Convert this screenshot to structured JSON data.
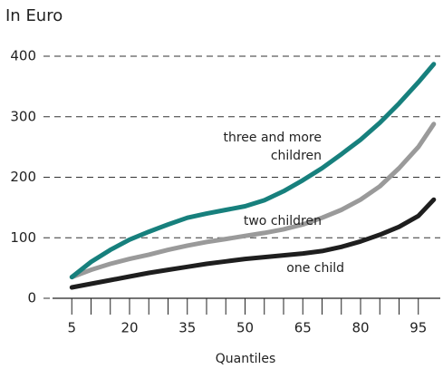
{
  "chart_data": {
    "type": "line",
    "title": "In Euro",
    "x_label": "Quantiles",
    "x": [
      5,
      10,
      15,
      20,
      25,
      30,
      35,
      40,
      45,
      50,
      55,
      60,
      65,
      70,
      75,
      80,
      85,
      90,
      95,
      99
    ],
    "series": [
      {
        "name": "three and more children",
        "color": "#17807d",
        "values": [
          35,
          60,
          80,
          97,
          110,
          122,
          133,
          140,
          146,
          152,
          162,
          177,
          195,
          215,
          238,
          262,
          290,
          322,
          357,
          387
        ]
      },
      {
        "name": "two children",
        "color": "#9a9a9a",
        "values": [
          35,
          47,
          57,
          65,
          72,
          80,
          87,
          93,
          98,
          103,
          108,
          114,
          122,
          133,
          146,
          163,
          185,
          215,
          250,
          288
        ]
      },
      {
        "name": "one child",
        "color": "#1e1e1e",
        "values": [
          18,
          24,
          30,
          36,
          42,
          47,
          52,
          57,
          61,
          65,
          68,
          71,
          74,
          78,
          85,
          94,
          105,
          118,
          136,
          163
        ]
      }
    ],
    "xlim": [
      0,
      100
    ],
    "ylim": [
      0,
      400
    ],
    "xticks": [
      5,
      20,
      35,
      50,
      65,
      80,
      95
    ],
    "xminorticks": [
      10,
      15,
      25,
      30,
      40,
      45,
      55,
      60,
      70,
      75,
      85,
      90
    ],
    "yticks": [
      0,
      100,
      200,
      300,
      400
    ],
    "grid": true
  }
}
